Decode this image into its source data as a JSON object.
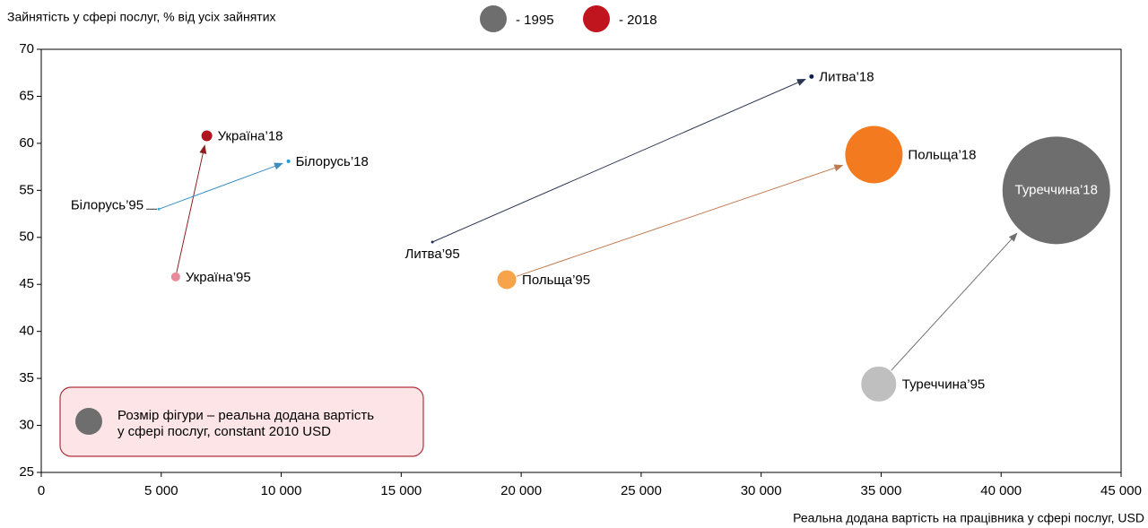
{
  "chart_data": {
    "type": "bubble",
    "y_axis_label": "Зайнятість у сфері послуг, % від усіх зайнятих",
    "x_axis_label": "Реальна додана вартість на працівника у сфері послуг, USD",
    "legend": [
      {
        "name": "- 1995",
        "color": "#6e6e6e"
      },
      {
        "name": "- 2018",
        "color": "#c0141e"
      }
    ],
    "annotation": [
      "Розмір фігури – реальна додана вартість",
      "у сфері послуг, constant 2010 USD"
    ],
    "points": [
      {
        "label": "Україна’95",
        "x": 5600,
        "y": 45.8,
        "size": 25,
        "color": "#e88a9a"
      },
      {
        "label": "Україна’18",
        "x": 6900,
        "y": 60.8,
        "size": 36,
        "color": "#b0141e"
      },
      {
        "label": "Білорусь’95",
        "x": 4900,
        "y": 53.0,
        "size": 1,
        "color": "#3fb0d8"
      },
      {
        "label": "Білорусь’18",
        "x": 10300,
        "y": 58.1,
        "size": 4,
        "color": "#1e9ed0"
      },
      {
        "label": "Литва’95",
        "x": 16300,
        "y": 49.5,
        "size": 1,
        "color": "#1f2d5a"
      },
      {
        "label": "Литва’18",
        "x": 32100,
        "y": 67.1,
        "size": 6,
        "color": "#0c1d4a"
      },
      {
        "label": "Польща’95",
        "x": 19400,
        "y": 45.5,
        "size": 121,
        "color": "#f6a34a"
      },
      {
        "label": "Польща’18",
        "x": 34700,
        "y": 58.8,
        "size": 1024,
        "color": "#f47a20"
      },
      {
        "label": "Туреччина’95",
        "x": 34900,
        "y": 34.4,
        "size": 400,
        "color": "#bfbfbf"
      },
      {
        "label": "Туреччина’18",
        "x": 42300,
        "y": 55.0,
        "size": 3600,
        "color": "#6e6e6e"
      }
    ],
    "arrow_colors": [
      "#8b2020",
      "#3a8fc0",
      "#2a3550",
      "#c07a50",
      "#707070"
    ],
    "xlim": [
      0,
      45000
    ],
    "xticks": [
      0,
      {
        "value": 5000,
        "label": "5 000"
      },
      {
        "value": 10000,
        "label": "10 000"
      },
      {
        "value": 15000,
        "label": "15 000"
      },
      {
        "value": 20000,
        "label": "20 000"
      },
      {
        "value": 25000,
        "label": "25 000"
      },
      {
        "value": 30000,
        "label": "30 000"
      },
      {
        "value": 35000,
        "label": "35 000"
      },
      {
        "value": 40000,
        "label": "40 000"
      },
      {
        "value": 45000,
        "label": "45 000"
      }
    ],
    "ylim": [
      25,
      70
    ],
    "yticks": [
      25,
      30,
      35,
      40,
      45,
      50,
      55,
      60,
      65,
      70
    ],
    "grid": false
  }
}
